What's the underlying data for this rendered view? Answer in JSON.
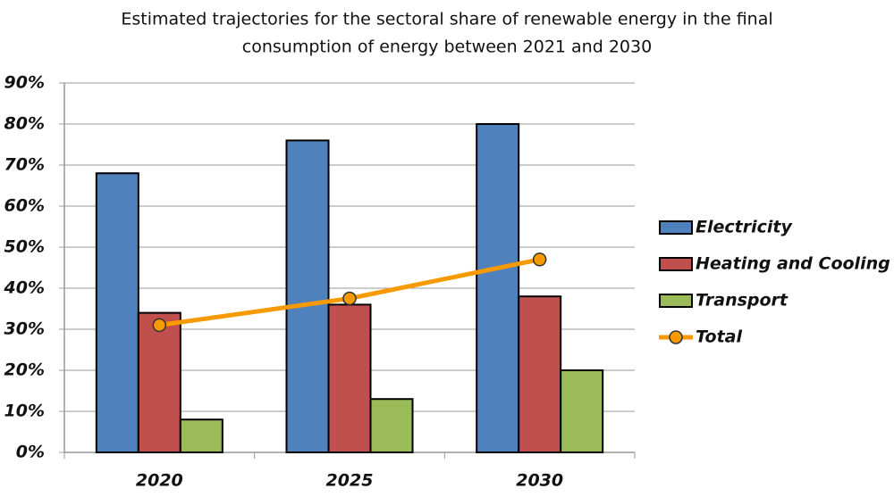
{
  "chart_data": {
    "type": "bar",
    "title": [
      "Estimated trajectories for the sectoral share of renewable energy in the final",
      "consumption of energy between 2021 and 2030"
    ],
    "categories": [
      "2020",
      "2025",
      "2030"
    ],
    "series": [
      {
        "name": "Electricity",
        "color": "#4f81bd",
        "values": [
          68,
          76,
          80
        ]
      },
      {
        "name": "Heating and Cooling",
        "color": "#c0504d",
        "values": [
          34,
          36,
          38
        ]
      },
      {
        "name": "Transport",
        "color": "#9bbb59",
        "values": [
          8,
          13,
          20
        ]
      },
      {
        "name": "Total",
        "type": "line",
        "color": "#f79a00",
        "values": [
          31,
          37.5,
          47
        ]
      }
    ],
    "ylim": [
      0,
      90
    ],
    "yticks": [
      {
        "value": 0,
        "label": "0%"
      },
      {
        "value": 10,
        "label": "10%"
      },
      {
        "value": 20,
        "label": "20%"
      },
      {
        "value": 30,
        "label": "30%"
      },
      {
        "value": 40,
        "label": "40%"
      },
      {
        "value": 50,
        "label": "50%"
      },
      {
        "value": 60,
        "label": "60%"
      },
      {
        "value": 70,
        "label": "70%"
      },
      {
        "value": 80,
        "label": "80%"
      },
      {
        "value": 90,
        "label": "90%"
      }
    ],
    "grid": true,
    "legend": "right"
  }
}
